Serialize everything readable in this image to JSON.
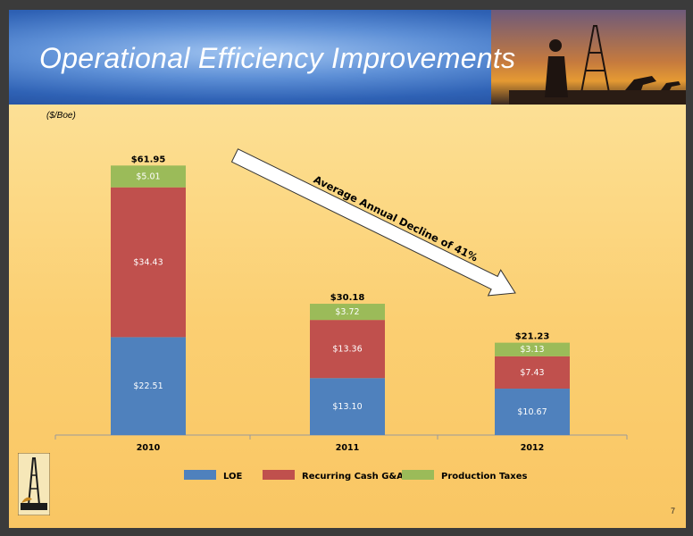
{
  "title": "Operational Efficiency Improvements",
  "unit_label": "($/Boe)",
  "page_number": "7",
  "annotation": "Average Annual Decline of 41%",
  "colors": {
    "LOE": "#4f81bd",
    "Recurring Cash G&A": "#c0504d",
    "Production Taxes": "#9bbb59"
  },
  "chart_data": {
    "type": "bar",
    "stacked": true,
    "categories": [
      "2010",
      "2011",
      "2012"
    ],
    "series": [
      {
        "name": "LOE",
        "values": [
          22.51,
          13.1,
          10.67
        ],
        "labels": [
          "$22.51",
          "$13.10",
          "$10.67"
        ]
      },
      {
        "name": "Recurring Cash G&A",
        "values": [
          34.43,
          13.36,
          7.43
        ],
        "labels": [
          "$34.43",
          "$13.36",
          "$7.43"
        ]
      },
      {
        "name": "Production Taxes",
        "values": [
          5.01,
          3.72,
          3.13
        ],
        "labels": [
          "$5.01",
          "$3.72",
          "$3.13"
        ]
      }
    ],
    "totals": [
      61.95,
      30.18,
      21.23
    ],
    "total_labels": [
      "$61.95",
      "$30.18",
      "$21.23"
    ],
    "ylim": [
      0,
      65
    ],
    "grid": false,
    "legend": "bottom"
  }
}
